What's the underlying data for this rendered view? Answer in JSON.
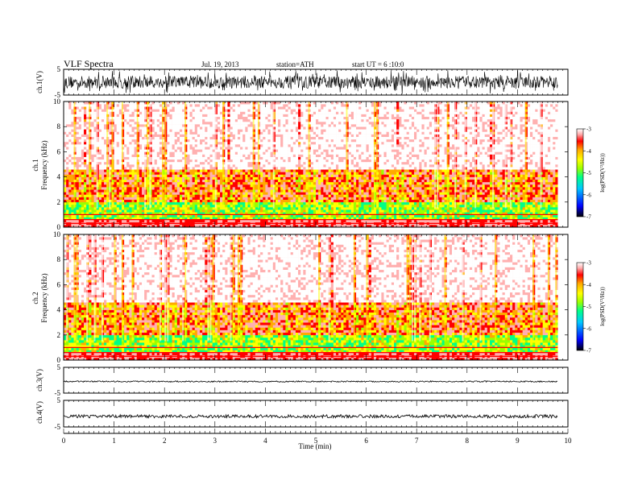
{
  "header": {
    "title": "VLF  Spectra",
    "date": "Jul.  19,  2013",
    "station": "station=ATH",
    "start": "start  UT  =   6  :10:0"
  },
  "chart_data": [
    {
      "type": "line",
      "panel": "ch1-waveform",
      "ylabel": "ch.1(V)",
      "ylim": [
        -5,
        5
      ],
      "yticks": [
        "5",
        "-5"
      ],
      "xlim": [
        0,
        10
      ],
      "description_of_signal": "dense broadband noise, roughly -2.5 to 2.5 V"
    },
    {
      "type": "heatmap",
      "panel": "ch1-spectrogram",
      "ylabel_1": "ch.1",
      "ylabel_2": "Frequency  (kHz)",
      "ylim": [
        0,
        10
      ],
      "yticks": [
        "0",
        "2",
        "4",
        "6",
        "8",
        "10"
      ],
      "xlim": [
        0,
        9.8
      ],
      "colorbar": {
        "label": "log(PSD(V²/Hz))",
        "range": [
          -7,
          -3
        ],
        "ticks": [
          "-3",
          "-4",
          "-5",
          "-6",
          "-7"
        ]
      }
    },
    {
      "type": "heatmap",
      "panel": "ch2-spectrogram",
      "ylabel_1": "ch.2",
      "ylabel_2": "Frequency  (kHz)",
      "ylim": [
        0,
        10
      ],
      "yticks": [
        "0",
        "2",
        "4",
        "6",
        "8",
        "10"
      ],
      "xlim": [
        0,
        9.8
      ],
      "colorbar": {
        "label": "log(PSD(V²/Hz))",
        "range": [
          -7,
          -3
        ],
        "ticks": [
          "-3",
          "-4",
          "-5",
          "-6",
          "-7"
        ]
      }
    },
    {
      "type": "line",
      "panel": "ch3-waveform",
      "ylabel": "ch.3(V)",
      "ylim": [
        -5,
        5
      ],
      "yticks": [
        "5",
        "-5"
      ],
      "level": -0.5
    },
    {
      "type": "line",
      "panel": "ch4-waveform",
      "ylabel": "ch.4(V)",
      "ylim": [
        -5,
        5
      ],
      "yticks": [
        "5",
        "-5"
      ],
      "level": -1.0
    }
  ],
  "xaxis": {
    "label": "Time  (min)",
    "ticks": [
      "0",
      "1",
      "2",
      "3",
      "4",
      "5",
      "6",
      "7",
      "8",
      "9",
      "10"
    ],
    "range": [
      0,
      10
    ]
  },
  "colors": {
    "colormap": [
      "#000000",
      "#0000ff",
      "#00c8ff",
      "#00ff88",
      "#9aff00",
      "#ffff00",
      "#ffaa00",
      "#ff0000",
      "#ffb0b0",
      "#ffffff"
    ]
  }
}
